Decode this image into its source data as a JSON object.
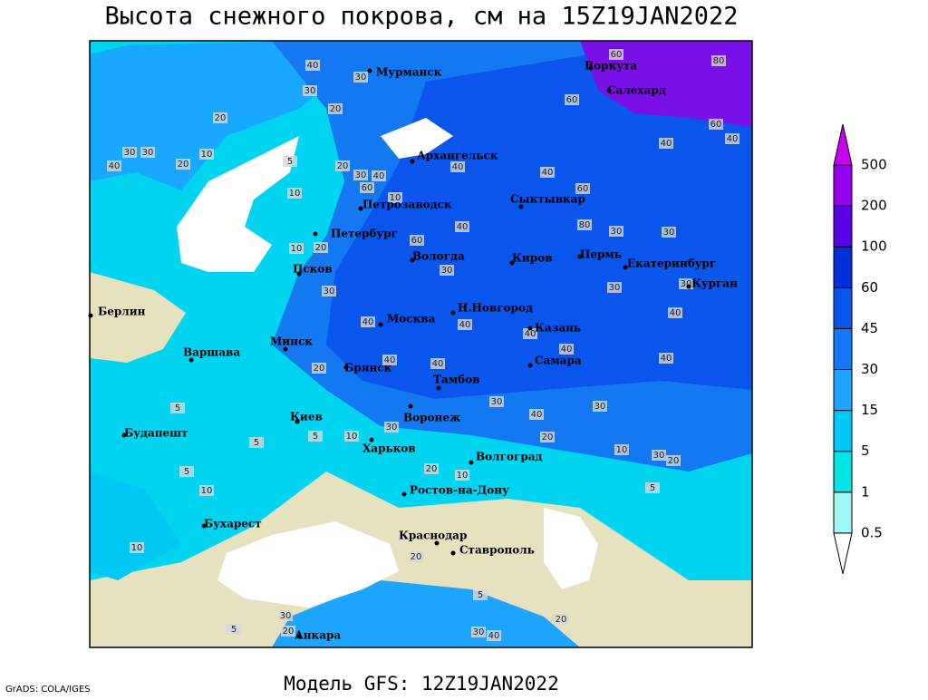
{
  "header": {
    "title": "Высота снежного покрова, см на 15Z19JAN2022"
  },
  "footer": {
    "model": "Модель GFS: 12Z19JAN2022",
    "credit": "GrADS: COLA/IGES"
  },
  "map": {
    "cities": [
      "Мурманск",
      "Воркута",
      "Салехард",
      "Архангельск",
      "Петрозаводск",
      "Сыктывкар",
      "Петербург",
      "Вологда",
      "Киров",
      "Пермь",
      "Екатеринбург",
      "Курган",
      "Псков",
      "Н.Новгород",
      "Москва",
      "Казань",
      "Берлин",
      "Варшава",
      "Минск",
      "Брянск",
      "Тамбов",
      "Самара",
      "Киев",
      "Воронеж",
      "Харьков",
      "Будапешт",
      "Волгоград",
      "Ростов-на-Дону",
      "Бухарест",
      "Краснодар",
      "Ставрополь",
      "Анкара"
    ],
    "contour_labels": [
      40,
      30,
      30,
      20,
      20,
      30,
      30,
      40,
      10,
      20,
      5,
      20,
      30,
      60,
      10,
      40,
      10,
      20,
      10,
      60,
      30,
      40,
      40,
      40,
      60,
      40,
      40,
      60,
      80,
      60,
      30,
      30,
      80,
      60,
      30,
      30,
      40,
      40,
      40,
      40,
      40,
      40,
      40,
      40,
      30,
      20,
      30,
      40,
      30,
      20,
      10,
      30,
      20,
      5,
      20,
      10,
      30,
      10,
      5,
      5,
      5,
      5,
      10,
      10,
      20,
      5,
      30,
      20,
      5,
      30,
      40,
      20
    ]
  },
  "legend": {
    "levels": [
      0.5,
      1,
      5,
      15,
      30,
      45,
      60,
      100,
      200,
      500
    ],
    "colors": [
      "#ffffff",
      "#a0f5f5",
      "#00e6e6",
      "#00c8f5",
      "#1ea5ff",
      "#1478f5",
      "#0a55eb",
      "#0030dc",
      "#5a00e6",
      "#9600f0",
      "#c800f0"
    ]
  }
}
